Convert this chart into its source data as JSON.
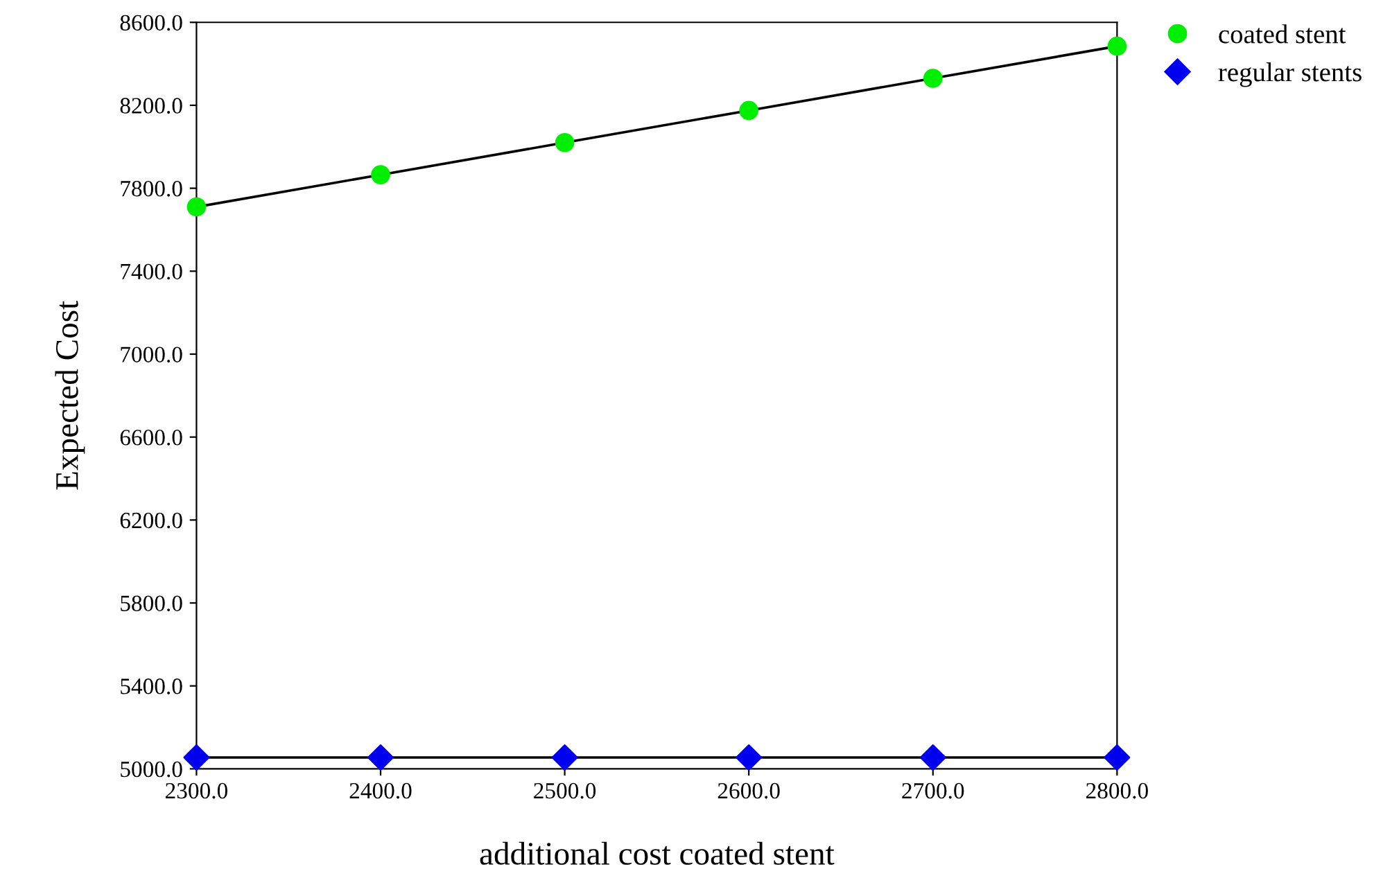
{
  "chart_data": {
    "type": "line",
    "xlabel": "additional cost coated stent",
    "ylabel": "Expected Cost",
    "x": [
      2300,
      2400,
      2500,
      2600,
      2700,
      2800
    ],
    "series": [
      {
        "name": "coated stent",
        "color": "#00ee00",
        "marker": "circle",
        "values": [
          7710,
          7865,
          8020,
          8175,
          8330,
          8485
        ]
      },
      {
        "name": "regular stents",
        "color": "#0000ee",
        "marker": "diamond",
        "values": [
          5055,
          5055,
          5055,
          5055,
          5055,
          5055
        ]
      }
    ],
    "xlim": [
      2300,
      2800
    ],
    "ylim": [
      5000,
      8600
    ],
    "xticks": [
      {
        "value": 2300,
        "label": "2300.0"
      },
      {
        "value": 2400,
        "label": "2400.0"
      },
      {
        "value": 2500,
        "label": "2500.0"
      },
      {
        "value": 2600,
        "label": "2600.0"
      },
      {
        "value": 2700,
        "label": "2700.0"
      },
      {
        "value": 2800,
        "label": "2800.0"
      }
    ],
    "yticks": [
      {
        "value": 5000,
        "label": "5000.0"
      },
      {
        "value": 5400,
        "label": "5400.0"
      },
      {
        "value": 5800,
        "label": "5800.0"
      },
      {
        "value": 6200,
        "label": "6200.0"
      },
      {
        "value": 6600,
        "label": "6600.0"
      },
      {
        "value": 7000,
        "label": "7000.0"
      },
      {
        "value": 7400,
        "label": "7400.0"
      },
      {
        "value": 7800,
        "label": "7800.0"
      },
      {
        "value": 8200,
        "label": "8200.0"
      },
      {
        "value": 8600,
        "label": "8600.0"
      }
    ],
    "grid": false,
    "legend": "top right"
  }
}
